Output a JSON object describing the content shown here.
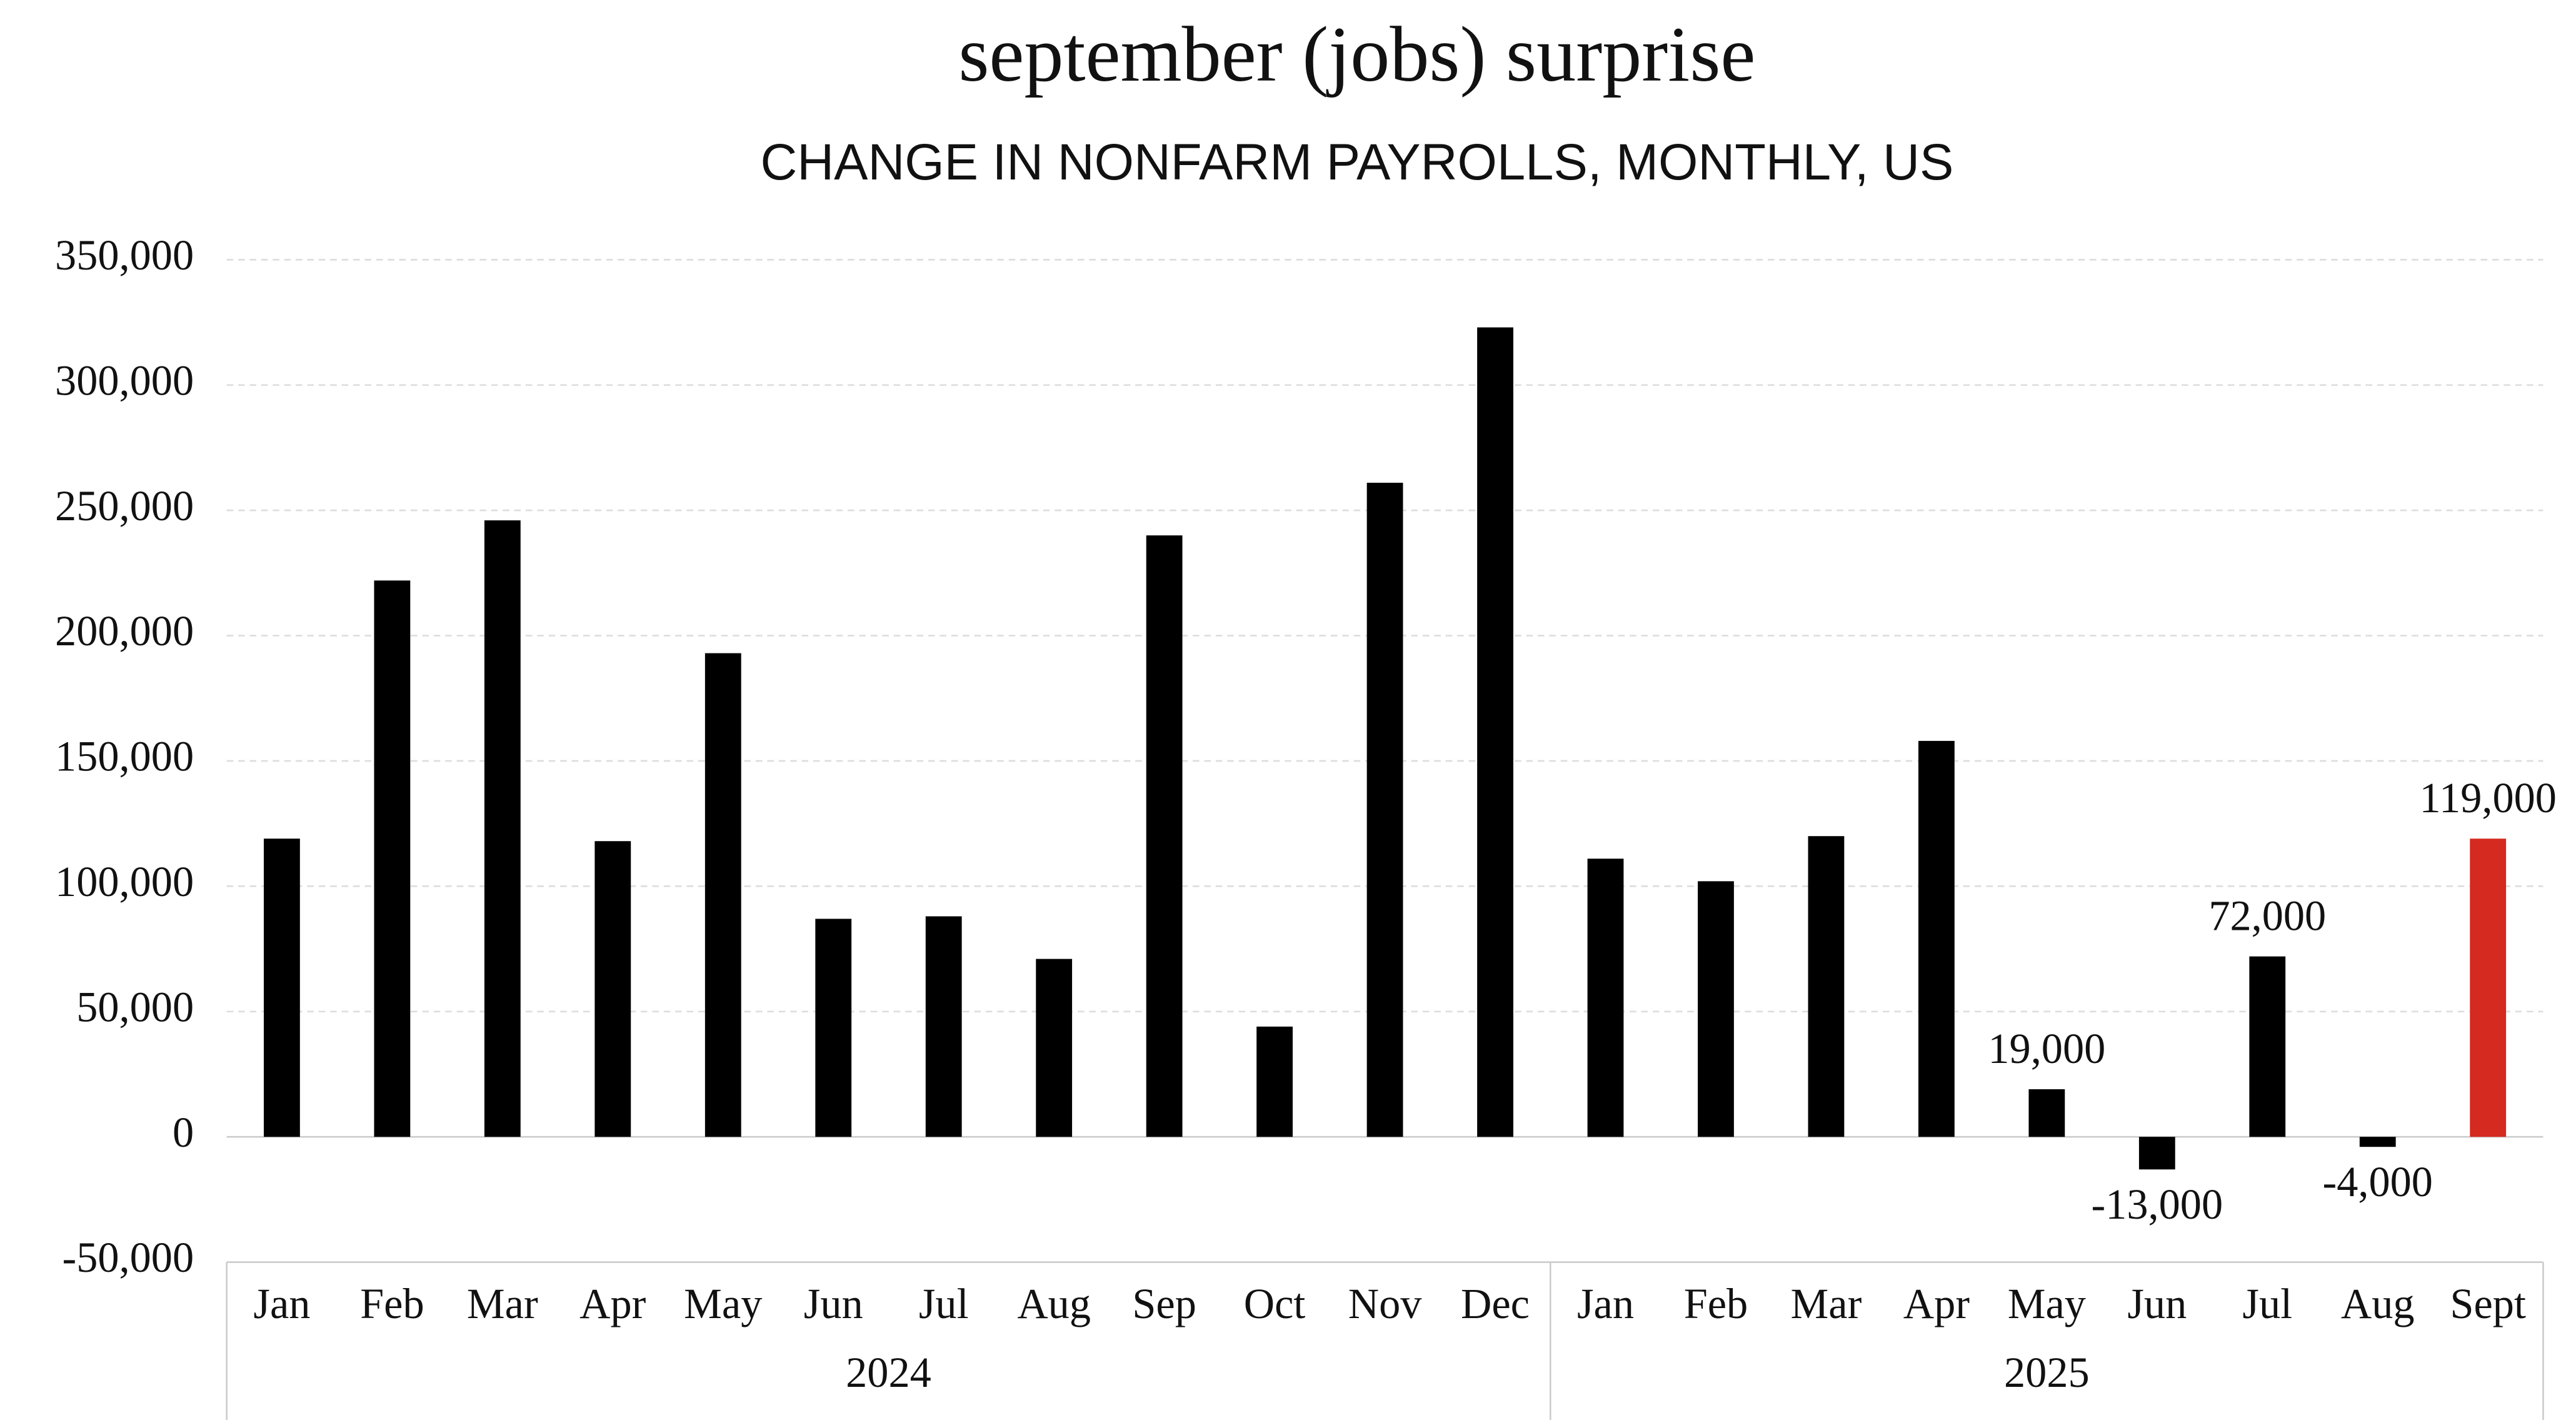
{
  "chart_data": {
    "type": "bar",
    "title": "september (jobs) surprise",
    "subtitle": "CHANGE IN NONFARM PAYROLLS, MONTHLY, US",
    "subtitle_color": "#d42a20",
    "groups": [
      {
        "name": "2024",
        "categories": [
          "Jan",
          "Feb",
          "Mar",
          "Apr",
          "May",
          "Jun",
          "Jul",
          "Aug",
          "Sep",
          "Oct",
          "Nov",
          "Dec"
        ],
        "values": [
          119000,
          222000,
          246000,
          118000,
          193000,
          87000,
          88000,
          71000,
          240000,
          44000,
          261000,
          323000
        ],
        "value_labels": [
          null,
          null,
          null,
          null,
          null,
          null,
          null,
          null,
          null,
          null,
          null,
          null
        ],
        "colors": [
          "#000000",
          "#000000",
          "#000000",
          "#000000",
          "#000000",
          "#000000",
          "#000000",
          "#000000",
          "#000000",
          "#000000",
          "#000000",
          "#000000"
        ]
      },
      {
        "name": "2025",
        "categories": [
          "Jan",
          "Feb",
          "Mar",
          "Apr",
          "May",
          "Jun",
          "Jul",
          "Aug",
          "Sept"
        ],
        "values": [
          111000,
          102000,
          120000,
          158000,
          19000,
          -13000,
          72000,
          -4000,
          119000
        ],
        "value_labels": [
          null,
          null,
          null,
          null,
          "19,000",
          "-13,000",
          "72,000",
          "-4,000",
          "119,000"
        ],
        "colors": [
          "#000000",
          "#000000",
          "#000000",
          "#000000",
          "#000000",
          "#000000",
          "#000000",
          "#000000",
          "#d42a20"
        ]
      }
    ],
    "ylim": [
      -50000,
      350000
    ],
    "yticks": [
      {
        "value": -50000,
        "label": "-50,000"
      },
      0,
      {
        "value": 50000,
        "label": "50,000"
      },
      {
        "value": 100000,
        "label": "100,000"
      },
      {
        "value": 150000,
        "label": "150,000"
      },
      {
        "value": 200000,
        "label": "200,000"
      },
      {
        "value": 250000,
        "label": "250,000"
      },
      {
        "value": 300000,
        "label": "300,000"
      },
      {
        "value": 350000,
        "label": "350,000"
      }
    ],
    "grid": true
  }
}
